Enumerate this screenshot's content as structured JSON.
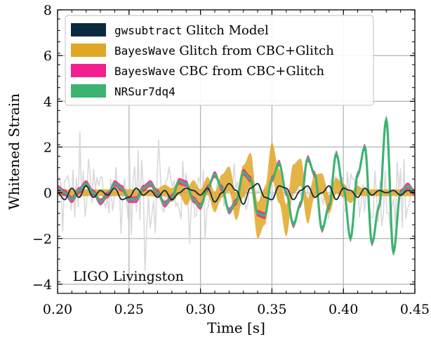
{
  "chart_data": {
    "type": "line",
    "title": "",
    "xlabel": "Time [s]",
    "ylabel": "Whitened Strain",
    "xlim": [
      0.2,
      0.45
    ],
    "ylim": [
      -4.4,
      8
    ],
    "x_ticks": [
      "0.20",
      "0.25",
      "0.30",
      "0.35",
      "0.40",
      "0.45"
    ],
    "x_tick_values": [
      0.2,
      0.25,
      0.3,
      0.35,
      0.4,
      0.45
    ],
    "y_ticks": [
      "−4",
      "−2",
      "0",
      "2",
      "4",
      "6",
      "8"
    ],
    "y_tick_values": [
      -4,
      -2,
      0,
      2,
      4,
      6,
      8
    ],
    "grid": true,
    "legend_position": "top-left",
    "annotation": "LIGO Livingston",
    "legend": [
      {
        "mono": "gwsubtract",
        "text": " Glitch Model",
        "color": "#0b2a3f"
      },
      {
        "mono": "BayesWave",
        "text": " Glitch from CBC+Glitch",
        "color": "#e0a727"
      },
      {
        "mono": "BayesWave",
        "text": " CBC from CBC+Glitch",
        "color": "#f41f8e"
      },
      {
        "mono": "NRSur7dq4",
        "text": "",
        "color": "#3db372"
      }
    ],
    "series": [
      {
        "name": "gwsubtract Glitch Model",
        "role": "line",
        "color": "#0b2a3f",
        "x": [
          0.2,
          0.205,
          0.21,
          0.215,
          0.22,
          0.225,
          0.23,
          0.235,
          0.24,
          0.245,
          0.25,
          0.255,
          0.26,
          0.265,
          0.27,
          0.275,
          0.28,
          0.285,
          0.29,
          0.295,
          0.3,
          0.305,
          0.31,
          0.315,
          0.32,
          0.325,
          0.33,
          0.335,
          0.34,
          0.345,
          0.35,
          0.355,
          0.36,
          0.365,
          0.37,
          0.375,
          0.38,
          0.385,
          0.39,
          0.395,
          0.4,
          0.405,
          0.41,
          0.415,
          0.42,
          0.425,
          0.43,
          0.435,
          0.44,
          0.445,
          0.45
        ],
        "y": [
          0.0,
          -0.3,
          0.2,
          -0.2,
          0.3,
          -0.2,
          0.1,
          -0.1,
          0.2,
          -0.3,
          -0.2,
          0.2,
          -0.1,
          0.1,
          -0.2,
          0.1,
          -0.3,
          0.0,
          0.2,
          0.1,
          -0.1,
          0.2,
          -0.4,
          0.0,
          0.4,
          0.1,
          -0.5,
          0.2,
          0.4,
          -0.2,
          -0.3,
          0.3,
          0.2,
          -0.3,
          0.1,
          0.3,
          -0.2,
          0.0,
          0.3,
          -0.3,
          0.2,
          0.1,
          -0.2,
          0.2,
          -0.1,
          0.1,
          0.0,
          0.1,
          -0.1,
          0.1,
          0.0
        ]
      },
      {
        "name": "NRSur7dq4",
        "role": "line",
        "color": "#3db372",
        "x": [
          0.2,
          0.205,
          0.21,
          0.215,
          0.22,
          0.225,
          0.23,
          0.235,
          0.24,
          0.245,
          0.25,
          0.255,
          0.26,
          0.265,
          0.27,
          0.275,
          0.28,
          0.285,
          0.29,
          0.295,
          0.3,
          0.305,
          0.31,
          0.315,
          0.32,
          0.325,
          0.33,
          0.335,
          0.34,
          0.345,
          0.35,
          0.355,
          0.36,
          0.365,
          0.37,
          0.375,
          0.38,
          0.385,
          0.39,
          0.395,
          0.4,
          0.405,
          0.41,
          0.415,
          0.42,
          0.425,
          0.43,
          0.435,
          0.44,
          0.445,
          0.45
        ],
        "y": [
          0.2,
          0.0,
          -0.3,
          0.1,
          0.4,
          0.0,
          -0.4,
          -0.1,
          0.4,
          0.2,
          -0.3,
          -0.3,
          0.2,
          0.4,
          0.0,
          -0.5,
          -0.2,
          0.5,
          0.4,
          -0.3,
          -0.6,
          0.2,
          0.8,
          0.2,
          -0.8,
          -0.4,
          0.9,
          0.6,
          -0.9,
          -1.0,
          0.6,
          1.3,
          0.0,
          -1.4,
          -0.5,
          1.5,
          0.8,
          -1.6,
          -0.6,
          1.7,
          0.2,
          -2.0,
          0.8,
          2.0,
          -2.2,
          -0.6,
          3.2,
          -2.6,
          0.0,
          0.3,
          0.0
        ]
      },
      {
        "name": "BayesWave CBC from CBC+Glitch",
        "role": "band",
        "color": "#f41f8e",
        "x": [
          0.2,
          0.205,
          0.21,
          0.215,
          0.22,
          0.225,
          0.23,
          0.235,
          0.24,
          0.245,
          0.25,
          0.255,
          0.26,
          0.265,
          0.27,
          0.275,
          0.28,
          0.285,
          0.29,
          0.295,
          0.3,
          0.305,
          0.31,
          0.315,
          0.32,
          0.325,
          0.33,
          0.335,
          0.34,
          0.345,
          0.35,
          0.355,
          0.36,
          0.365,
          0.37,
          0.375,
          0.38,
          0.385,
          0.39,
          0.395,
          0.4,
          0.405,
          0.41,
          0.415,
          0.42,
          0.425,
          0.43,
          0.435,
          0.44,
          0.445,
          0.45
        ],
        "y": [
          0.2,
          0.0,
          -0.3,
          0.1,
          0.4,
          0.0,
          -0.4,
          -0.1,
          0.4,
          0.2,
          -0.3,
          -0.3,
          0.2,
          0.4,
          0.0,
          -0.5,
          -0.2,
          0.5,
          0.4,
          -0.3,
          -0.6,
          0.2,
          0.8,
          0.2,
          -0.8,
          -0.4,
          0.9,
          0.6,
          -0.9,
          -1.0,
          0.6,
          1.3,
          0.0,
          -1.4,
          -0.5,
          1.5,
          0.8,
          -1.6,
          -0.6,
          1.7,
          0.2,
          -2.0,
          0.8,
          2.0,
          -2.2,
          -0.6,
          3.2,
          -2.6,
          0.0,
          0.3,
          0.0
        ],
        "spread": 0.15
      },
      {
        "name": "BayesWave Glitch from CBC+Glitch",
        "role": "band",
        "color": "#e0a727",
        "x": [
          0.2,
          0.205,
          0.21,
          0.215,
          0.22,
          0.225,
          0.23,
          0.235,
          0.24,
          0.245,
          0.25,
          0.255,
          0.26,
          0.265,
          0.27,
          0.275,
          0.28,
          0.285,
          0.29,
          0.295,
          0.3,
          0.305,
          0.31,
          0.315,
          0.32,
          0.325,
          0.33,
          0.335,
          0.34,
          0.345,
          0.35,
          0.355,
          0.36,
          0.365,
          0.37,
          0.375,
          0.38,
          0.385,
          0.39,
          0.395,
          0.4,
          0.405,
          0.41,
          0.415,
          0.42,
          0.425,
          0.43,
          0.435,
          0.44,
          0.445,
          0.45
        ],
        "y": [
          0.0,
          0.0,
          0.0,
          0.0,
          0.0,
          0.0,
          0.0,
          0.0,
          0.0,
          0.0,
          0.0,
          0.0,
          0.0,
          0.0,
          0.0,
          0.1,
          -0.1,
          0.2,
          -0.2,
          0.2,
          -0.2,
          0.3,
          -0.4,
          0.3,
          0.6,
          -0.6,
          0.5,
          1.0,
          -1.2,
          -0.6,
          1.4,
          0.3,
          -1.2,
          0.6,
          0.9,
          -0.8,
          0.3,
          0.4,
          -0.5,
          0.3,
          0.1,
          -0.2,
          0.1,
          0.0,
          0.0,
          0.0,
          0.0,
          0.0,
          0.0,
          0.0,
          0.0
        ],
        "spread": [
          0.15,
          0.15,
          0.15,
          0.15,
          0.15,
          0.15,
          0.15,
          0.15,
          0.15,
          0.15,
          0.15,
          0.15,
          0.15,
          0.15,
          0.2,
          0.25,
          0.3,
          0.3,
          0.35,
          0.35,
          0.35,
          0.4,
          0.45,
          0.5,
          0.55,
          0.6,
          0.7,
          0.75,
          0.8,
          0.8,
          0.8,
          0.75,
          0.7,
          0.65,
          0.6,
          0.55,
          0.5,
          0.45,
          0.4,
          0.35,
          0.3,
          0.25,
          0.2,
          0.15,
          0.15,
          0.15,
          0.15,
          0.15,
          0.15,
          0.15,
          0.15
        ]
      }
    ]
  }
}
